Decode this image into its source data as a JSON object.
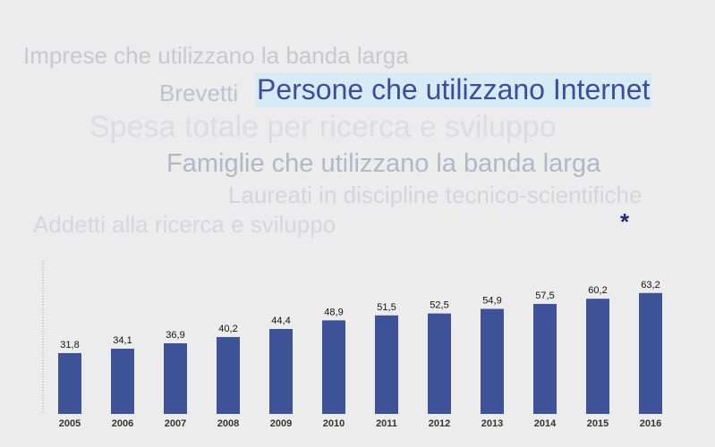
{
  "topics": {
    "imprese": "Imprese che utilizzano la banda larga",
    "brevetti": "Brevetti",
    "persone": "Persone che utilizzano Internet",
    "spesa": "Spesa totale per ricerca e sviluppo",
    "famiglie": "Famiglie che utilizzano la banda larga",
    "laureati": "Laureati in discipline tecnico-scientifiche",
    "addetti": "Addetti alla ricerca e sviluppo"
  },
  "note_marker": "*",
  "colors": {
    "bar": "#3e5298",
    "selected_topic": "#3a4f98",
    "selected_bg": "#d7ebf7"
  },
  "chart_data": {
    "type": "bar",
    "categories": [
      "2005",
      "2006",
      "2007",
      "2008",
      "2009",
      "2010",
      "2011",
      "2012",
      "2013",
      "2014",
      "2015",
      "2016"
    ],
    "values": [
      31.8,
      34.1,
      36.9,
      40.2,
      44.4,
      48.9,
      51.5,
      52.5,
      54.9,
      57.5,
      60.2,
      63.2
    ],
    "value_labels": [
      "31,8",
      "34,1",
      "36,9",
      "40,2",
      "44,4",
      "48,9",
      "51,5",
      "52,5",
      "54,9",
      "57,5",
      "60,2",
      "63,2"
    ],
    "ylim": [
      0,
      75
    ],
    "grid": false,
    "legend": "none"
  }
}
